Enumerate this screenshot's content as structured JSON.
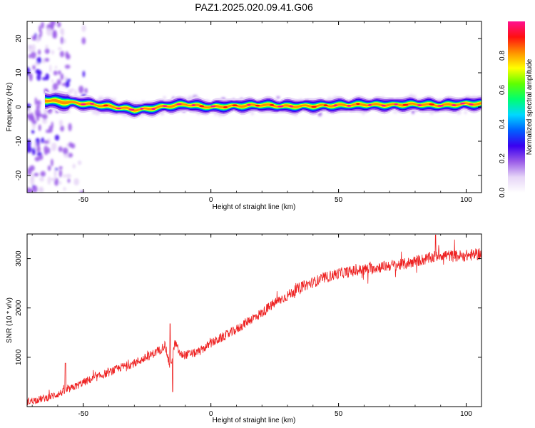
{
  "title": "PAZ1.2025.020.09.41.G06",
  "colorbar": {
    "label": "Normalized spectral amplitude",
    "ticks": [
      "0.0",
      "0.2",
      "0.4",
      "0.6",
      "0.8"
    ],
    "tick_values": [
      0.0,
      0.2,
      0.4,
      0.6,
      0.8
    ],
    "range": [
      0,
      1
    ],
    "colormap": [
      "#ffffff",
      "#e6d5f7",
      "#9a5be8",
      "#3a00f0",
      "#0060ff",
      "#00d8ff",
      "#00ff70",
      "#60ff00",
      "#ffff00",
      "#ff9000",
      "#ff1010",
      "#ff1090"
    ]
  },
  "chart_data": [
    {
      "type": "heatmap",
      "xlabel": "Height of straight line (km)",
      "ylabel": "Frequency (Hz)",
      "xlim": [
        -72,
        106
      ],
      "ylim": [
        -25,
        25
      ],
      "xticks": [
        -50,
        0,
        50,
        100
      ],
      "xtick_labels": [
        "-50",
        "0",
        "50",
        "100"
      ],
      "yticks": [
        -20,
        -10,
        0,
        10,
        20
      ],
      "ytick_labels": [
        "-20",
        "-10",
        "0",
        "10",
        "20"
      ],
      "ridge": {
        "x": [
          -65,
          -60,
          -55,
          -50,
          -45,
          -40,
          -35,
          -30,
          -25,
          -20,
          -15,
          -10,
          -5,
          0,
          10,
          20,
          30,
          40,
          50,
          60,
          70,
          80,
          90,
          100,
          106
        ],
        "frequency": [
          2.0,
          1.6,
          1.3,
          1.0,
          0.6,
          0.2,
          -0.3,
          -0.8,
          -0.6,
          0.0,
          0.4,
          0.8,
          0.3,
          0.0,
          0.3,
          0.6,
          0.2,
          0.3,
          0.5,
          0.7,
          0.6,
          0.8,
          0.5,
          0.9,
          0.9
        ],
        "peak_amplitude": 0.95
      },
      "noise_region_x": [
        -72,
        -48
      ]
    },
    {
      "type": "line",
      "xlabel": "Height of straight line (km)",
      "ylabel": "SNR (10 * v/v)",
      "xlim": [
        -72,
        106
      ],
      "ylim": [
        0,
        3500
      ],
      "xticks": [
        -50,
        0,
        50,
        100
      ],
      "xtick_labels": [
        "-50",
        "0",
        "50",
        "100"
      ],
      "yticks": [
        1000,
        2000,
        3000
      ],
      "ytick_labels": [
        "1000",
        "2000",
        "3000"
      ],
      "series": [
        {
          "color": "#ee2222",
          "x": [
            -72,
            -65,
            -60,
            -55,
            -50,
            -45,
            -40,
            -35,
            -30,
            -25,
            -20,
            -18,
            -16,
            -14,
            -12,
            -10,
            -5,
            0,
            5,
            10,
            15,
            20,
            25,
            30,
            35,
            40,
            45,
            50,
            55,
            60,
            65,
            70,
            75,
            80,
            85,
            90,
            95,
            100,
            106
          ],
          "y": [
            100,
            170,
            250,
            360,
            490,
            590,
            690,
            800,
            880,
            1000,
            1150,
            1250,
            800,
            1300,
            1050,
            1050,
            1100,
            1280,
            1420,
            1560,
            1750,
            1900,
            2100,
            2250,
            2420,
            2520,
            2620,
            2700,
            2740,
            2780,
            2820,
            2860,
            2880,
            2950,
            3000,
            3080,
            3050,
            3060,
            3100
          ],
          "noise_amplitude": 120,
          "spikes": [
            {
              "x": -57,
              "y": 880
            },
            {
              "x": -16,
              "y": 1680
            },
            {
              "x": -15,
              "y": 300
            },
            {
              "x": 88,
              "y": 3480
            }
          ]
        }
      ]
    }
  ]
}
